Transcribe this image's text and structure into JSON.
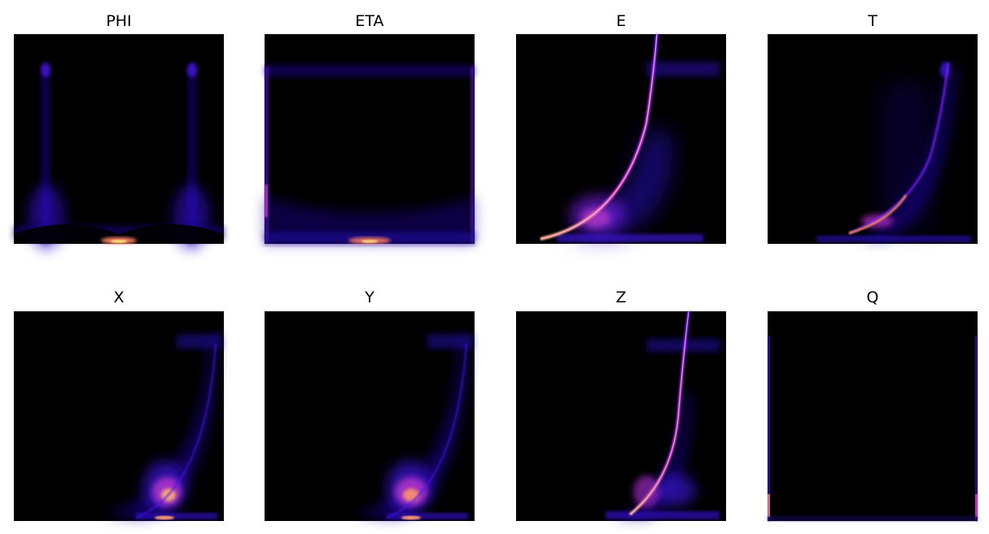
{
  "colors": {
    "background": "#ffffff",
    "colormap": "gnuplot2",
    "colormap_stops": [
      "#000000",
      "#1a00b0",
      "#6b00ff",
      "#d92ad6",
      "#ff8a5c",
      "#ffe26b"
    ]
  },
  "chart_data": [
    {
      "type": "heatmap",
      "title": "PHI",
      "colormap": "gnuplot2",
      "axes_visible": false
    },
    {
      "type": "heatmap",
      "title": "ETA",
      "colormap": "gnuplot2",
      "axes_visible": false
    },
    {
      "type": "heatmap",
      "title": "E",
      "colormap": "gnuplot2",
      "axes_visible": false
    },
    {
      "type": "heatmap",
      "title": "T",
      "colormap": "gnuplot2",
      "axes_visible": false
    },
    {
      "type": "heatmap",
      "title": "X",
      "colormap": "gnuplot2",
      "axes_visible": false
    },
    {
      "type": "heatmap",
      "title": "Y",
      "colormap": "gnuplot2",
      "axes_visible": false
    },
    {
      "type": "heatmap",
      "title": "Z",
      "colormap": "gnuplot2",
      "axes_visible": false
    },
    {
      "type": "heatmap",
      "title": "Q",
      "colormap": "gnuplot2",
      "axes_visible": false
    }
  ]
}
